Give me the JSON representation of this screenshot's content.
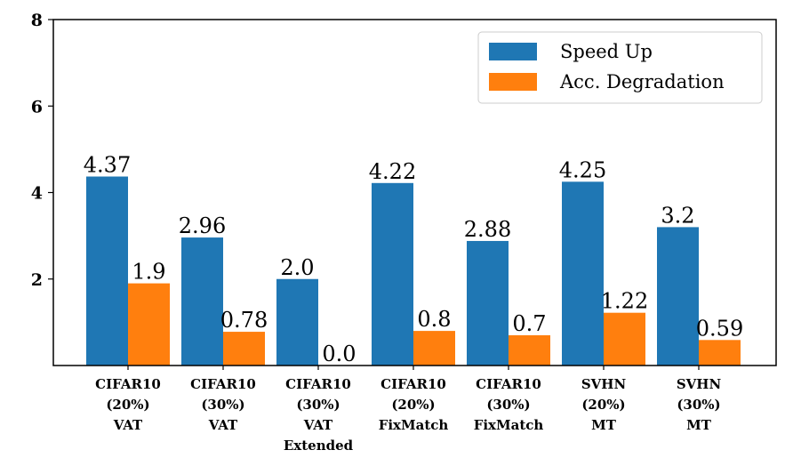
{
  "chart_data": {
    "type": "bar",
    "categories": [
      [
        "CIFAR10",
        "(20%)",
        "VAT"
      ],
      [
        "CIFAR10",
        "(30%)",
        "VAT"
      ],
      [
        "CIFAR10",
        "(30%)",
        "VAT",
        "Extended"
      ],
      [
        "CIFAR10",
        "(20%)",
        "FixMatch"
      ],
      [
        "CIFAR10",
        "(30%)",
        "FixMatch"
      ],
      [
        "SVHN",
        "(20%)",
        "MT"
      ],
      [
        "SVHN",
        "(30%)",
        "MT"
      ]
    ],
    "series": [
      {
        "name": "Speed Up",
        "color": "#1f77b4",
        "values": [
          4.37,
          2.96,
          2.0,
          4.22,
          2.88,
          4.25,
          3.2
        ],
        "value_labels": [
          "4.37",
          "2.96",
          "2.0",
          "4.22",
          "2.88",
          "4.25",
          "3.2"
        ]
      },
      {
        "name": "Acc. Degradation",
        "color": "#ff7f0e",
        "values": [
          1.9,
          0.78,
          0.0,
          0.8,
          0.7,
          1.22,
          0.59
        ],
        "value_labels": [
          "1.9",
          "0.78",
          "0.0",
          "0.8",
          "0.7",
          "1.22",
          "0.59"
        ]
      }
    ],
    "yticks": [
      2,
      4,
      6,
      8
    ],
    "ylim": [
      0,
      8
    ],
    "title": "",
    "xlabel": "",
    "ylabel": "",
    "legend_position": "top-right",
    "grid": false
  }
}
